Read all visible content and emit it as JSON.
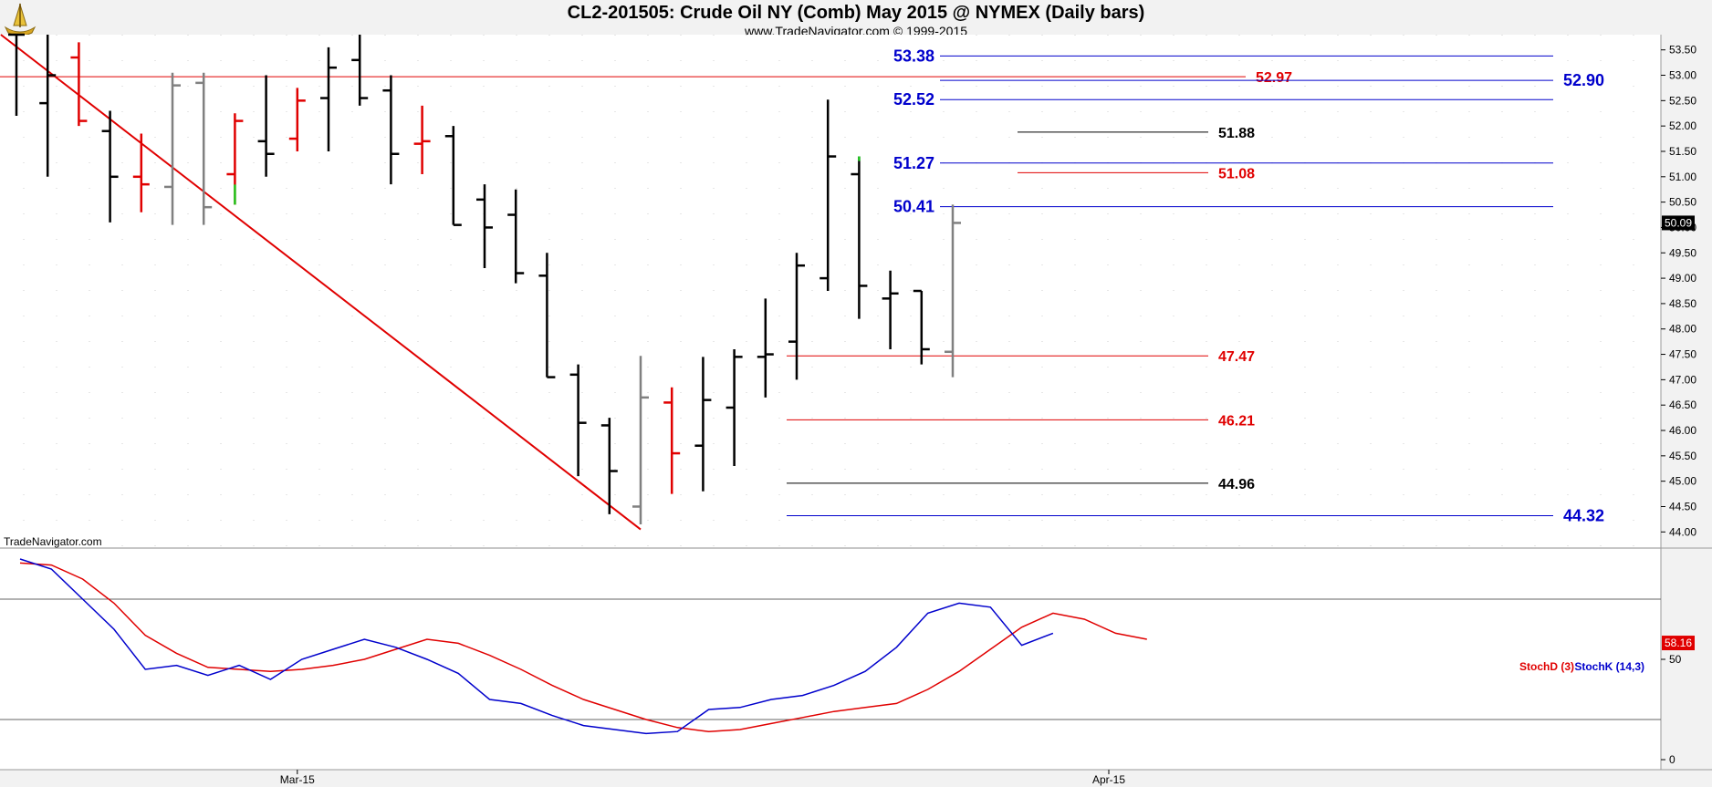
{
  "header": {
    "title": "CL2-201505:  Crude Oil NY (Comb) May 2015 @ NYMEX  (Daily bars)",
    "subtitle": "www.TradeNavigator.com © 1999-2015",
    "watermark": "TradeNavigator.com"
  },
  "colors": {
    "up_bar": "#000000",
    "down_bar": "#e00000",
    "neutral_bar": "#808080",
    "trendline": "#e00000",
    "blue_level": "#0000cc",
    "red_level": "#e00000",
    "black_level": "#000000",
    "stoch_d": "#e00000",
    "stoch_k": "#0000cc"
  },
  "chart_data": [
    {
      "type": "ohlc",
      "title": "CL2-201505:  Crude Oil NY (Comb) May 2015 @ NYMEX  (Daily bars)",
      "ylim": [
        43.7,
        53.8
      ],
      "y_ticks": [
        "53.50",
        "53.00",
        "52.50",
        "52.00",
        "51.50",
        "51.00",
        "50.50",
        "50.00",
        "49.50",
        "49.00",
        "48.50",
        "48.00",
        "47.50",
        "47.00",
        "46.50",
        "46.00",
        "45.50",
        "45.00",
        "44.50",
        "44.00"
      ],
      "x_ticks": [
        {
          "label": "Mar-15",
          "index": 9
        },
        {
          "label": "Apr-15",
          "index": 35
        }
      ],
      "last_price": "50.09",
      "bars": [
        {
          "o": 53.8,
          "h": 53.8,
          "l": 52.2,
          "c": 53.8,
          "color": "black"
        },
        {
          "o": 52.45,
          "h": 53.8,
          "l": 51.0,
          "c": 53.0,
          "color": "black"
        },
        {
          "o": 53.35,
          "h": 53.65,
          "l": 52.0,
          "c": 52.1,
          "color": "red"
        },
        {
          "o": 51.9,
          "h": 52.3,
          "l": 50.1,
          "c": 51.0,
          "color": "black"
        },
        {
          "o": 51.0,
          "h": 51.85,
          "l": 50.3,
          "c": 50.85,
          "color": "red"
        },
        {
          "o": 50.8,
          "h": 53.05,
          "l": 50.05,
          "c": 52.8,
          "color": "gray"
        },
        {
          "o": 52.85,
          "h": 53.05,
          "l": 50.05,
          "c": 50.4,
          "color": "gray"
        },
        {
          "o": 51.05,
          "h": 52.25,
          "l": 50.45,
          "c": 52.1,
          "color": "red",
          "low_tick": "green"
        },
        {
          "o": 51.7,
          "h": 53.0,
          "l": 51.0,
          "c": 51.45,
          "color": "black"
        },
        {
          "o": 51.75,
          "h": 52.75,
          "l": 51.5,
          "c": 52.5,
          "color": "red"
        },
        {
          "o": 52.55,
          "h": 53.55,
          "l": 51.5,
          "c": 53.15,
          "color": "black"
        },
        {
          "o": 53.3,
          "h": 53.8,
          "l": 52.4,
          "c": 52.55,
          "color": "black"
        },
        {
          "o": 52.7,
          "h": 53.0,
          "l": 50.85,
          "c": 51.45,
          "color": "black"
        },
        {
          "o": 51.65,
          "h": 52.4,
          "l": 51.05,
          "c": 51.7,
          "color": "red"
        },
        {
          "o": 51.8,
          "h": 52.0,
          "l": 50.05,
          "c": 50.05,
          "color": "black"
        },
        {
          "o": 50.55,
          "h": 50.85,
          "l": 49.2,
          "c": 50.0,
          "color": "black"
        },
        {
          "o": 50.25,
          "h": 50.75,
          "l": 48.9,
          "c": 49.1,
          "color": "black"
        },
        {
          "o": 49.05,
          "h": 49.5,
          "l": 47.05,
          "c": 47.05,
          "color": "black"
        },
        {
          "o": 47.1,
          "h": 47.3,
          "l": 45.1,
          "c": 46.15,
          "color": "black"
        },
        {
          "o": 46.1,
          "h": 46.25,
          "l": 44.35,
          "c": 45.2,
          "color": "black"
        },
        {
          "o": 44.5,
          "h": 47.47,
          "l": 44.15,
          "c": 46.65,
          "color": "gray"
        },
        {
          "o": 46.55,
          "h": 46.85,
          "l": 44.75,
          "c": 45.55,
          "color": "red"
        },
        {
          "o": 45.7,
          "h": 47.45,
          "l": 44.8,
          "c": 46.6,
          "color": "black"
        },
        {
          "o": 46.45,
          "h": 47.6,
          "l": 45.3,
          "c": 47.45,
          "color": "black"
        },
        {
          "o": 47.45,
          "h": 48.6,
          "l": 46.65,
          "c": 47.5,
          "color": "black"
        },
        {
          "o": 47.75,
          "h": 49.5,
          "l": 47.0,
          "c": 49.25,
          "color": "black"
        },
        {
          "o": 49.0,
          "h": 52.52,
          "l": 48.75,
          "c": 51.4,
          "color": "black"
        },
        {
          "o": 51.05,
          "h": 51.4,
          "l": 48.2,
          "c": 48.85,
          "color": "black",
          "high_tick": "green"
        },
        {
          "o": 48.6,
          "h": 49.15,
          "l": 47.6,
          "c": 48.7,
          "color": "black"
        },
        {
          "o": 48.75,
          "h": 48.75,
          "l": 47.3,
          "c": 47.6,
          "color": "black"
        },
        {
          "o": 47.55,
          "h": 50.45,
          "l": 47.05,
          "c": 50.09,
          "color": "gray"
        }
      ],
      "levels": [
        {
          "value": 53.38,
          "label": "53.38",
          "color": "blue",
          "label_side": "left"
        },
        {
          "value": 52.97,
          "label": "52.97",
          "color": "red",
          "label_side": "right"
        },
        {
          "value": 52.9,
          "label": "52.90",
          "color": "blue",
          "label_side": "far"
        },
        {
          "value": 52.52,
          "label": "52.52",
          "color": "blue",
          "label_side": "left"
        },
        {
          "value": 51.88,
          "label": "51.88",
          "color": "black",
          "label_side": "right"
        },
        {
          "value": 51.27,
          "label": "51.27",
          "color": "blue",
          "label_side": "left"
        },
        {
          "value": 51.08,
          "label": "51.08",
          "color": "red",
          "label_side": "right"
        },
        {
          "value": 50.41,
          "label": "50.41",
          "color": "blue",
          "label_side": "left"
        },
        {
          "value": 47.47,
          "label": "47.47",
          "color": "red",
          "label_side": "right"
        },
        {
          "value": 46.21,
          "label": "46.21",
          "color": "red",
          "label_side": "right"
        },
        {
          "value": 44.96,
          "label": "44.96",
          "color": "black",
          "label_side": "right"
        },
        {
          "value": 44.32,
          "label": "44.32",
          "color": "blue",
          "label_side": "far"
        }
      ],
      "trendline": {
        "from": {
          "index": -0.5,
          "value": 53.8
        },
        "to": {
          "index": 20,
          "value": 44.05
        }
      }
    },
    {
      "type": "line",
      "ylim": [
        -5,
        105
      ],
      "y_ticks": [
        "50",
        "0"
      ],
      "reference_lines": [
        80,
        20
      ],
      "last_value": "58.16",
      "series": [
        {
          "name": "StochD (3)",
          "color": "red",
          "values": [
            98,
            97,
            90,
            78,
            62,
            53,
            46,
            45,
            44,
            45,
            47,
            50,
            55,
            60,
            58,
            52,
            45,
            37,
            30,
            25,
            20,
            16,
            14,
            15,
            18,
            21,
            24,
            26,
            28,
            35,
            44,
            55,
            66,
            73,
            70,
            63,
            60
          ]
        },
        {
          "name": "StochK (14,3)",
          "color": "blue",
          "values": [
            100,
            95,
            80,
            65,
            45,
            47,
            42,
            47,
            40,
            50,
            55,
            60,
            56,
            50,
            43,
            30,
            28,
            22,
            17,
            15,
            13,
            14,
            25,
            26,
            30,
            32,
            37,
            44,
            56,
            73,
            78,
            76,
            57,
            63
          ]
        }
      ]
    }
  ]
}
